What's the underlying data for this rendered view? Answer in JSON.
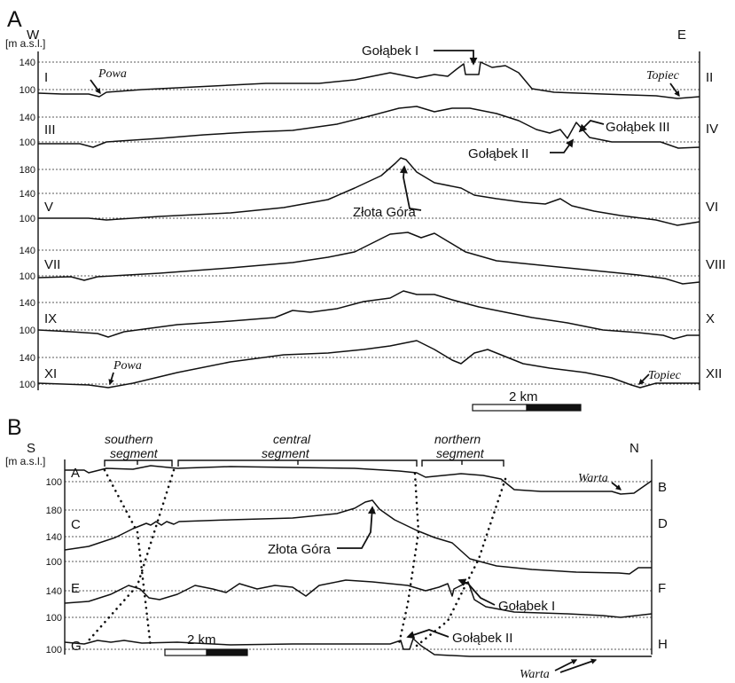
{
  "panel_a": {
    "letter": "A",
    "unit": "[m a.s.l.]",
    "west": "W",
    "east": "E",
    "profiles": [
      {
        "left": "I",
        "right": "II",
        "ticks": [
          "140",
          "100"
        ]
      },
      {
        "left": "III",
        "right": "IV",
        "ticks": [
          "140",
          "100"
        ]
      },
      {
        "left": "V",
        "right": "VI",
        "ticks": [
          "180",
          "140",
          "100"
        ]
      },
      {
        "left": "VII",
        "right": "VIII",
        "ticks": [
          "140",
          "100"
        ]
      },
      {
        "left": "IX",
        "right": "X",
        "ticks": [
          "140",
          "100"
        ]
      },
      {
        "left": "XI",
        "right": "XII",
        "ticks": [
          "140",
          "100"
        ]
      }
    ],
    "labels": {
      "golabek_1": "Gołąbek I",
      "golabek_2": "Gołąbek II",
      "golabek_3": "Gołąbek III",
      "zlota_gora": "Złota Góra",
      "powa_top": "Powa",
      "topiec_top": "Topiec",
      "powa_bottom": "Powa",
      "topiec_bottom": "Topiec"
    },
    "scale": "2 km"
  },
  "panel_b": {
    "letter": "B",
    "unit": "[m a.s.l.]",
    "south": "S",
    "north": "N",
    "segments": {
      "southern": [
        "southern",
        "segment"
      ],
      "central": [
        "central",
        "segment"
      ],
      "northern": [
        "northern",
        "segment"
      ]
    },
    "profiles": [
      {
        "left": "A",
        "right": "B",
        "ticks": [
          "100"
        ]
      },
      {
        "left": "C",
        "right": "D",
        "ticks": [
          "180",
          "140",
          "100"
        ]
      },
      {
        "left": "E",
        "right": "F",
        "ticks": [
          "140",
          "100"
        ]
      },
      {
        "left": "G",
        "right": "H",
        "ticks": [
          "100"
        ]
      }
    ],
    "labels": {
      "zlota_gora": "Złota Góra",
      "golabek_1": "Gołąbek I",
      "golabek_2": "Gołąbek II",
      "warta_top": "Warta",
      "warta_bottom": "Warta"
    },
    "scale": "2 km"
  }
}
